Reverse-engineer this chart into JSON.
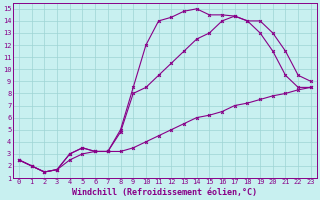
{
  "title": "",
  "xlabel": "Windchill (Refroidissement éolien,°C)",
  "bg_color": "#c8f0f0",
  "grid_color": "#9ed4d4",
  "line_color": "#880088",
  "xlim": [
    -0.5,
    23.5
  ],
  "ylim": [
    1,
    15.5
  ],
  "xticks": [
    0,
    1,
    2,
    3,
    4,
    5,
    6,
    7,
    8,
    9,
    10,
    11,
    12,
    13,
    14,
    15,
    16,
    17,
    18,
    19,
    20,
    21,
    22,
    23
  ],
  "yticks": [
    1,
    2,
    3,
    4,
    5,
    6,
    7,
    8,
    9,
    10,
    11,
    12,
    13,
    14,
    15
  ],
  "line1_x": [
    0,
    1,
    2,
    3,
    4,
    5,
    6,
    7,
    8,
    9,
    10,
    11,
    12,
    13,
    14,
    15,
    16,
    17,
    18,
    19,
    20,
    21,
    22,
    23
  ],
  "line1_y": [
    2.5,
    2.0,
    1.5,
    1.7,
    2.5,
    3.0,
    3.2,
    3.2,
    3.2,
    3.5,
    4.0,
    4.5,
    5.0,
    5.5,
    6.0,
    6.2,
    6.5,
    7.0,
    7.2,
    7.5,
    7.8,
    8.0,
    8.3,
    8.5
  ],
  "line2_x": [
    0,
    1,
    2,
    3,
    4,
    5,
    6,
    7,
    8,
    9,
    10,
    11,
    12,
    13,
    14,
    15,
    16,
    17,
    18,
    19,
    20,
    21,
    22,
    23
  ],
  "line2_y": [
    2.5,
    2.0,
    1.5,
    1.7,
    3.0,
    3.5,
    3.2,
    3.2,
    5.0,
    8.5,
    12.0,
    14.0,
    14.3,
    14.8,
    15.0,
    14.5,
    14.5,
    14.4,
    14.0,
    13.0,
    11.5,
    9.5,
    8.5,
    8.5
  ],
  "line3_x": [
    0,
    1,
    2,
    3,
    4,
    5,
    6,
    7,
    8,
    9,
    10,
    11,
    12,
    13,
    14,
    15,
    16,
    17,
    18,
    19,
    20,
    21,
    22,
    23
  ],
  "line3_y": [
    2.5,
    2.0,
    1.5,
    1.7,
    3.0,
    3.5,
    3.2,
    3.2,
    4.8,
    8.0,
    8.5,
    9.5,
    10.5,
    11.5,
    12.5,
    13.0,
    14.0,
    14.4,
    14.0,
    14.0,
    13.0,
    11.5,
    9.5,
    9.0
  ],
  "tick_fontsize": 5.0,
  "label_fontsize": 6.0
}
